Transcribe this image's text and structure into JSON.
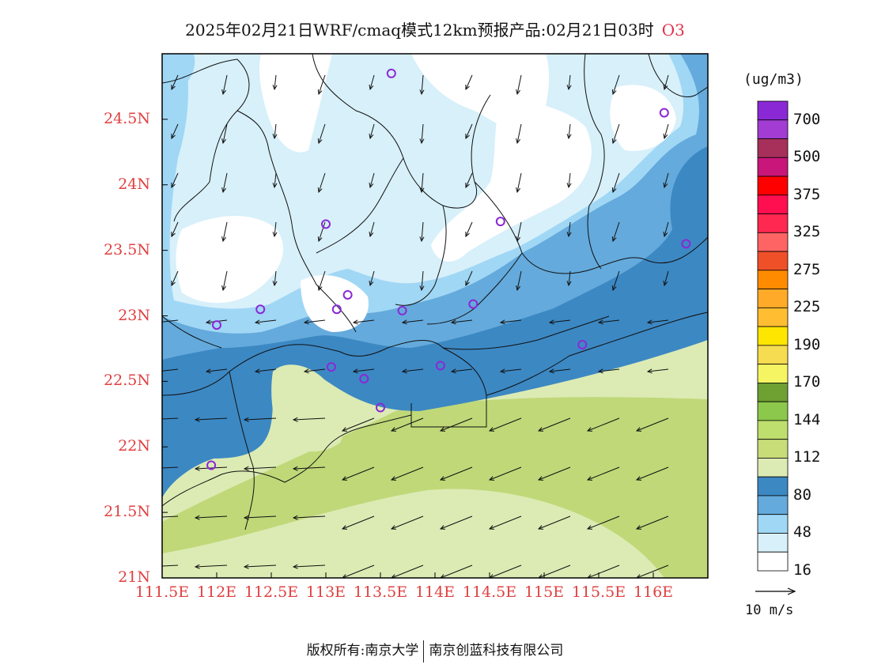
{
  "title": {
    "main": "2025年02月21日WRF/cmaq模式12km预报产品:02月21日03时",
    "species": "O3"
  },
  "footer": {
    "copyright_prefix": "版权所有:",
    "org1": "南京大学",
    "org2": "南京创蓝科技有限公司"
  },
  "map": {
    "lon_range": [
      111.5,
      116.5
    ],
    "lat_range": [
      21,
      25
    ],
    "x_ticks": [
      "111.5E",
      "112E",
      "112.5E",
      "113E",
      "113.5E",
      "114E",
      "114.5E",
      "115E",
      "115.5E",
      "116E"
    ],
    "y_ticks": [
      "24.5N",
      "24N",
      "23.5N",
      "23N",
      "22.5N",
      "22N",
      "21.5N",
      "21N"
    ],
    "tick_color": "#e04040"
  },
  "legend": {
    "unit": "(ug/m3)",
    "labels": [
      "700",
      "500",
      "375",
      "325",
      "275",
      "225",
      "190",
      "170",
      "144",
      "112",
      "80",
      "48",
      "16"
    ],
    "colors_top_to_bottom": [
      "#8b28d6",
      "#a23cd2",
      "#a7305a",
      "#c8167a",
      "#ff0000",
      "#ff0f50",
      "#ff2850",
      "#ff6464",
      "#f05028",
      "#ff8c00",
      "#ffaa28",
      "#ffbe32",
      "#ffe600",
      "#f5dc50",
      "#f5f564",
      "#6ea032",
      "#8cc84b",
      "#bede6e",
      "#c8dc78",
      "#dcebb4",
      "#3c88c3",
      "#64aadc",
      "#a0d7f5",
      "#d7f0fa",
      "#ffffff"
    ]
  },
  "wind_reference": {
    "label": "10 m/s"
  },
  "stations": [
    [
      113.6,
      24.85
    ],
    [
      116.1,
      24.55
    ],
    [
      113.0,
      23.7
    ],
    [
      114.6,
      23.72
    ],
    [
      116.3,
      23.55
    ],
    [
      113.2,
      23.16
    ],
    [
      113.1,
      23.05
    ],
    [
      112.4,
      23.05
    ],
    [
      112.0,
      22.93
    ],
    [
      113.7,
      23.04
    ],
    [
      114.35,
      23.09
    ],
    [
      115.35,
      22.78
    ],
    [
      113.05,
      22.61
    ],
    [
      114.05,
      22.62
    ],
    [
      113.35,
      22.52
    ],
    [
      113.5,
      22.3
    ],
    [
      111.95,
      21.86
    ]
  ]
}
